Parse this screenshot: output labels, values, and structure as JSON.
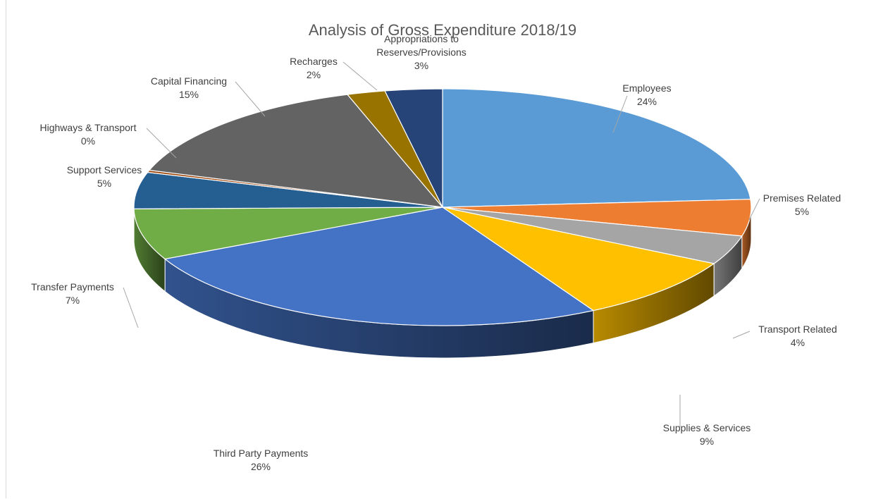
{
  "chart_data": {
    "type": "pie",
    "title": "Analysis of Gross Expenditure 2018/19",
    "slices": [
      {
        "name": "Employees",
        "value": 24,
        "label": "24%",
        "color": "#5b9bd5"
      },
      {
        "name": "Premises Related",
        "value": 5,
        "label": "5%",
        "color": "#ed7d31"
      },
      {
        "name": "Transport Related",
        "value": 4,
        "label": "4%",
        "color": "#a5a5a5"
      },
      {
        "name": "Supplies & Services",
        "value": 9,
        "label": "9%",
        "color": "#ffc000"
      },
      {
        "name": "Third Party Payments",
        "value": 26,
        "label": "26%",
        "color": "#4472c4"
      },
      {
        "name": "Transfer Payments",
        "value": 7,
        "label": "7%",
        "color": "#70ad47"
      },
      {
        "name": "Support Services",
        "value": 5,
        "label": "5%",
        "color": "#255e91"
      },
      {
        "name": "Highways & Transport",
        "value": 0.3,
        "label": "0%",
        "color": "#9e480e"
      },
      {
        "name": "Capital Financing",
        "value": 15,
        "label": "15%",
        "color": "#636363"
      },
      {
        "name": "Recharges",
        "value": 2,
        "label": "2%",
        "color": "#997300"
      },
      {
        "name": "Appropriations to Reserves/Provisions",
        "value": 3,
        "label": "3%",
        "color": "#264478"
      }
    ],
    "style": "3d",
    "legend": "none",
    "data_labels": "outside with leader lines"
  }
}
